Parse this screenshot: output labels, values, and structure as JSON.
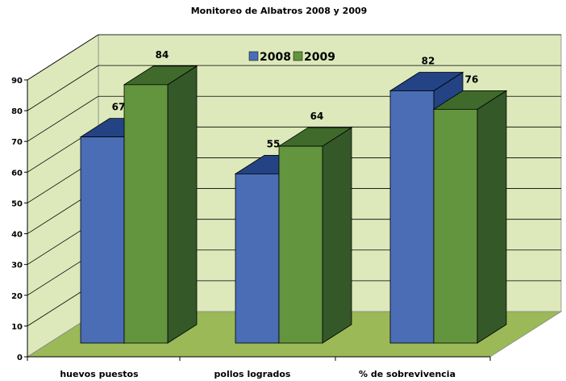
{
  "chart_data": {
    "type": "bar",
    "title": "Monitoreo de Albatros 2008 y 2009",
    "categories": [
      "huevos puestos",
      "pollos logrados",
      "% de sobrevivencia"
    ],
    "series": [
      {
        "name": "2008",
        "values": [
          67,
          55,
          82
        ],
        "color": "#4a6db6"
      },
      {
        "name": "2009",
        "values": [
          84,
          64,
          76
        ],
        "color": "#63943e"
      }
    ],
    "ylim": [
      0,
      90
    ],
    "yticks": [
      0,
      10,
      20,
      30,
      40,
      50,
      60,
      70,
      80,
      90
    ],
    "grid": true,
    "legend": "top-center",
    "three_d": true,
    "colors": {
      "back_wall": "#dde9bb",
      "floor": "#9bb957",
      "bar_2008_front": "#4a6db6",
      "bar_2008_side": "#234384",
      "bar_2008_top": "#234384",
      "bar_2009_front": "#63943e",
      "bar_2009_side": "#355829",
      "bar_2009_top": "#3f6a2b"
    }
  }
}
